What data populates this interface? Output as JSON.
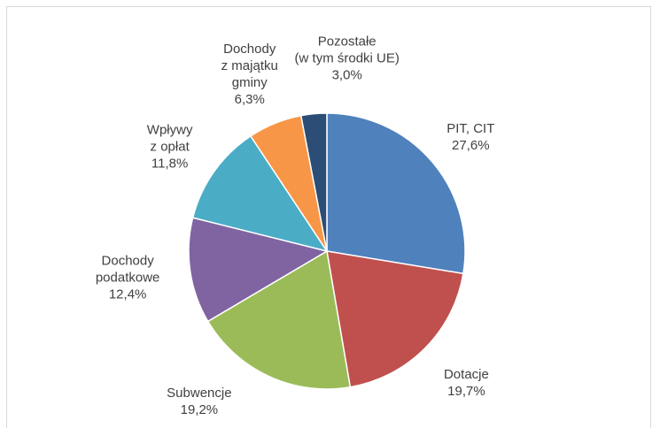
{
  "chart_data": {
    "type": "pie",
    "categories": [
      "PIT, CIT",
      "Dotacje",
      "Subwencje",
      "Dochody\npodatkowe",
      "Wpływy\nz opłat",
      "Dochody\nz majątku\ngminy",
      "Pozostałe\n(w tym środki UE)"
    ],
    "values": [
      27.6,
      19.7,
      19.2,
      12.4,
      11.8,
      6.3,
      3.0
    ],
    "value_labels": [
      "27,6%",
      "19,7%",
      "19,2%",
      "12,4%",
      "11,8%",
      "6,3%",
      "3,0%"
    ],
    "colors": [
      "#4f81bd",
      "#c0504d",
      "#9bbb59",
      "#8064a2",
      "#4bacc6",
      "#f79646",
      "#2c4d75"
    ]
  }
}
